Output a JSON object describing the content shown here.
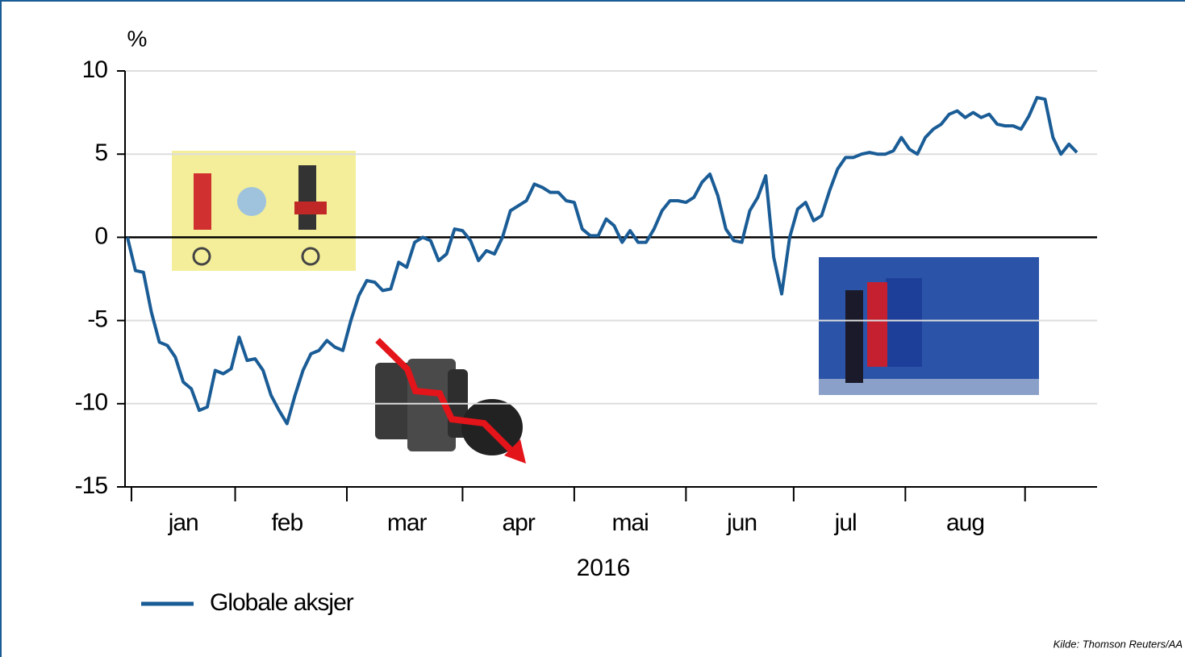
{
  "chart_data": {
    "type": "line",
    "ylabel": "%",
    "xlabel": "2016",
    "source": "Kilde: Thomson Reuters/AA",
    "categories": [
      null,
      null,
      null,
      null,
      null,
      null,
      null,
      "jan",
      null,
      null,
      null,
      null,
      null,
      null,
      null,
      null,
      null,
      null,
      null,
      null,
      "feb",
      null,
      null,
      null,
      null,
      null,
      null,
      null,
      null,
      null,
      null,
      null,
      null,
      null,
      null,
      "mar",
      null,
      null,
      null,
      null,
      null,
      null,
      null,
      null,
      null,
      null,
      null,
      null,
      null,
      "apr",
      null,
      null,
      null,
      null,
      null,
      null,
      null,
      null,
      null,
      null,
      null,
      null,
      null,
      "mai",
      null,
      null,
      null,
      null,
      null,
      null,
      null,
      null,
      null,
      null,
      null,
      null,
      null,
      "jun",
      null,
      null,
      null,
      null,
      null,
      null,
      null,
      null,
      null,
      null,
      null,
      null,
      "jul",
      null,
      null,
      null,
      null,
      null,
      null,
      null,
      null,
      null,
      null,
      null,
      null,
      null,
      null,
      "aug",
      null,
      null,
      null,
      null,
      null,
      null,
      null,
      null,
      null,
      null,
      null,
      null,
      null,
      null
    ],
    "series": [
      {
        "name": "Globale aksjer",
        "color": "#1a5c96",
        "values": [
          0,
          -2,
          -2.1,
          -4.5,
          -6.3,
          -6.5,
          -7.2,
          -8.7,
          -9.1,
          -10.4,
          -10.2,
          -8.0,
          -8.2,
          -7.9,
          -6.0,
          -7.4,
          -7.3,
          -8.0,
          -9.5,
          -10.4,
          -11.2,
          -9.5,
          -8.0,
          -7.0,
          -6.8,
          -6.2,
          -6.6,
          -6.8,
          -5.0,
          -3.5,
          -2.6,
          -2.7,
          -3.2,
          -3.1,
          -1.5,
          -1.8,
          -0.3,
          0,
          -0.2,
          -1.4,
          -1.0,
          0.5,
          0.4,
          -0.2,
          -1.4,
          -0.8,
          -1.0,
          0,
          1.6,
          1.9,
          2.2,
          3.2,
          3.0,
          2.7,
          2.7,
          2.2,
          2.1,
          0.5,
          0.1,
          0.1,
          1.1,
          0.7,
          -0.3,
          0.4,
          -0.3,
          -0.3,
          0.5,
          1.6,
          2.2,
          2.2,
          2.1,
          2.4,
          3.3,
          3.8,
          2.5,
          0.5,
          -0.2,
          -0.3,
          1.6,
          2.4,
          3.7,
          -1.2,
          -3.4,
          0,
          1.7,
          2.1,
          1.0,
          1.3,
          2.8,
          4.1,
          4.8,
          4.8,
          5.0,
          5.1,
          5.0,
          5.0,
          5.2,
          6.0,
          5.3,
          5.0,
          6.0,
          6.5,
          6.8,
          7.4,
          7.6,
          7.2,
          7.5,
          7.2,
          7.4,
          6.8,
          6.7,
          6.7,
          6.5,
          7.3,
          8.4,
          8.3,
          6.0,
          5.0,
          5.6,
          5.1
        ]
      }
    ],
    "ylim": [
      -15,
      10
    ],
    "yticks": [
      -15,
      -10,
      -5,
      0,
      5,
      10
    ],
    "grid": true
  }
}
